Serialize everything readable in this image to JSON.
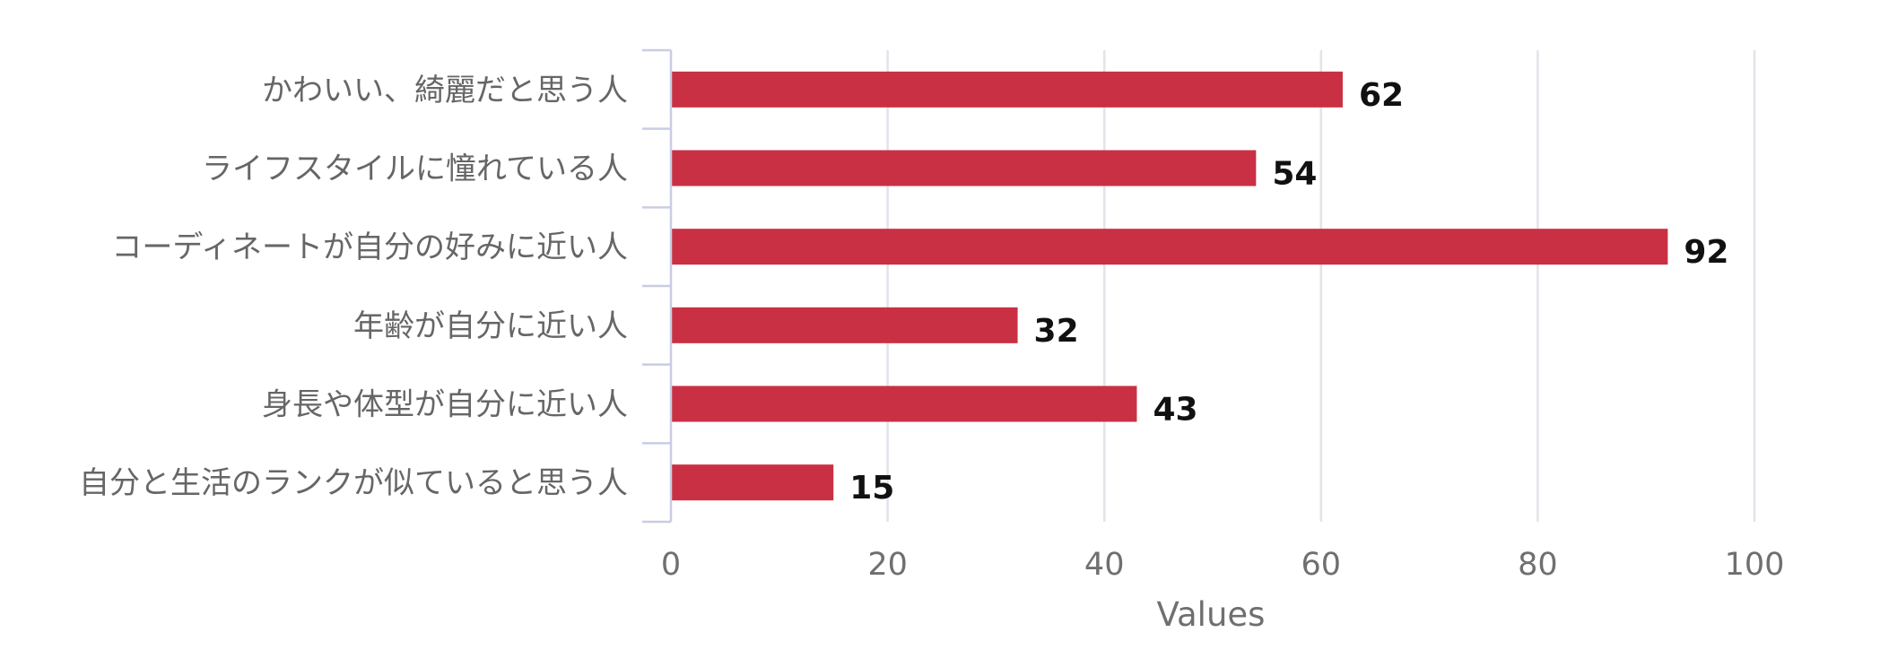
{
  "chart_data": {
    "type": "bar",
    "orientation": "horizontal",
    "categories": [
      "かわいい、綺麗だと思う人",
      "ライフスタイルに憧れている人",
      "コーディネートが自分の好みに近い人",
      "年齢が自分に近い人",
      "身長や体型が自分に近い人",
      "自分と生活のランクが似ていると思う人"
    ],
    "values": [
      62,
      54,
      92,
      32,
      43,
      15
    ],
    "xlabel": "Values",
    "ylabel": "",
    "xlim": [
      0,
      100
    ],
    "x_ticks": [
      0,
      20,
      40,
      60,
      80,
      100
    ],
    "grid": true,
    "legend": "none",
    "data_labels": true,
    "colors": {
      "bar": "#c93044",
      "grid": "#e3e3ea",
      "axis": "#c9cde3",
      "category_text": "#666666",
      "value_text": "#111111"
    }
  }
}
